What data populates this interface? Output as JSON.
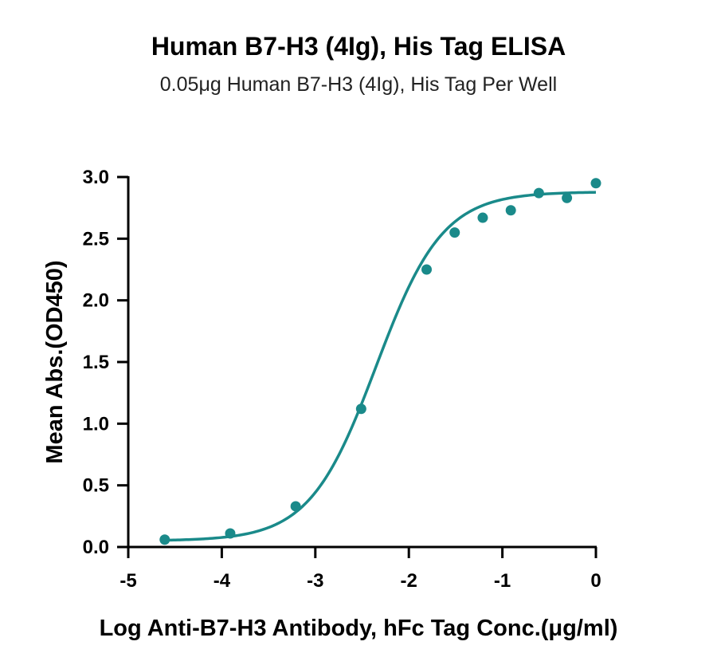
{
  "chart_data": {
    "type": "scatter",
    "title": "Human B7-H3 (4Ig), His Tag ELISA",
    "subtitle": "0.05μg Human B7-H3 (4Ig), His Tag Per Well",
    "xlabel": "Log Anti-B7-H3 Antibody, hFc Tag Conc.(μg/ml)",
    "ylabel": "Mean Abs.(OD450)",
    "xlim": [
      -5,
      0
    ],
    "ylim": [
      0,
      3.0
    ],
    "xticks": [
      "-5",
      "-4",
      "-3",
      "-2",
      "-1",
      "0"
    ],
    "yticks": [
      "0.0",
      "0.5",
      "1.0",
      "1.5",
      "2.0",
      "2.5",
      "3.0"
    ],
    "color": "#1a8a8a",
    "series": [
      {
        "x": [
          -4.61,
          -3.91,
          -3.21,
          -2.51,
          -1.81,
          -1.51,
          -1.21,
          -0.91,
          -0.61,
          -0.31,
          0.0
        ],
        "y": [
          0.06,
          0.11,
          0.33,
          1.12,
          2.25,
          2.55,
          2.67,
          2.73,
          2.87,
          2.83,
          2.95
        ]
      }
    ],
    "fit": {
      "model": "4PL",
      "bottom": 0.05,
      "top": 2.88,
      "logEC50": -2.35,
      "hill": 1.22
    }
  }
}
